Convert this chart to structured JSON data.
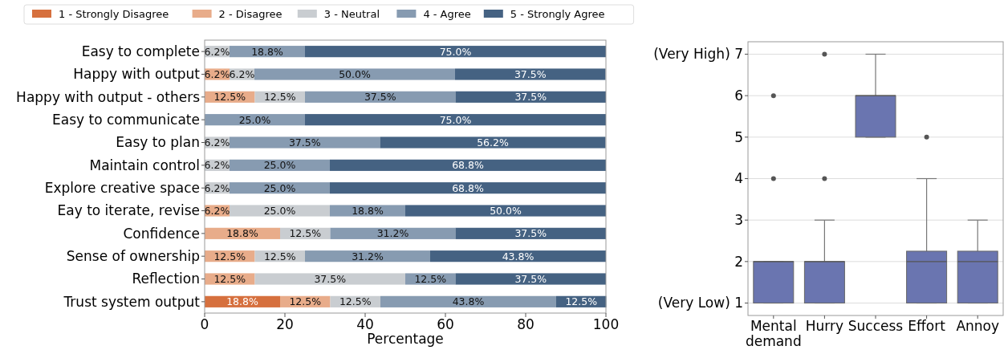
{
  "chart_data": [
    {
      "type": "bar",
      "orientation": "horizontal",
      "stacked": true,
      "xlabel": "Percentage",
      "xlim": [
        0,
        100
      ],
      "xticks": [
        0,
        20,
        40,
        60,
        80,
        100
      ],
      "grid": false,
      "legend": "top",
      "categories": [
        "Easy to complete",
        "Happy with output",
        "Happy with output - others",
        "Easy to communicate",
        "Easy to plan",
        "Maintain control",
        "Explore creative space",
        "Eay to iterate, revise",
        "Confidence",
        "Sense of ownership",
        "Reflection",
        "Trust system output"
      ],
      "series": [
        {
          "name": "1 - Strongly Disagree",
          "color": "#d6703e",
          "values": [
            0,
            0,
            0,
            0,
            0,
            0,
            0,
            0,
            0,
            0,
            0,
            18.8
          ],
          "value_labels": [
            null,
            null,
            null,
            null,
            null,
            null,
            null,
            null,
            null,
            null,
            null,
            "18.8%"
          ]
        },
        {
          "name": "2 - Disagree",
          "color": "#e8ac8a",
          "values": [
            0,
            6.2,
            12.5,
            0,
            0,
            0,
            0,
            6.2,
            18.8,
            12.5,
            12.5,
            12.5
          ],
          "value_labels": [
            null,
            "6.2%",
            "12.5%",
            null,
            null,
            null,
            null,
            "6.2%",
            "18.8%",
            "12.5%",
            "12.5%",
            "12.5%"
          ]
        },
        {
          "name": "3 - Neutral",
          "color": "#c9cdd1",
          "values": [
            6.2,
            6.2,
            12.5,
            0,
            6.2,
            6.2,
            6.2,
            25.0,
            12.5,
            12.5,
            37.5,
            12.5
          ],
          "value_labels": [
            "6.2%",
            "6.2%",
            "12.5%",
            null,
            "6.2%",
            "6.2%",
            "6.2%",
            "25.0%",
            "12.5%",
            "12.5%",
            "37.5%",
            "12.5%"
          ]
        },
        {
          "name": "4 - Agree",
          "color": "#879bb1",
          "values": [
            18.8,
            50.0,
            37.5,
            25.0,
            37.5,
            25.0,
            25.0,
            18.8,
            31.2,
            31.2,
            12.5,
            43.8
          ],
          "value_labels": [
            "18.8%",
            "50.0%",
            "37.5%",
            "25.0%",
            "37.5%",
            "25.0%",
            "25.0%",
            "18.8%",
            "31.2%",
            "31.2%",
            "12.5%",
            "43.8%"
          ]
        },
        {
          "name": "5 - Strongly Agree",
          "color": "#456282",
          "values": [
            75.0,
            37.5,
            37.5,
            75.0,
            56.2,
            68.8,
            68.8,
            50.0,
            37.5,
            43.8,
            37.5,
            12.5
          ],
          "value_labels": [
            "75.0%",
            "37.5%",
            "37.5%",
            "75.0%",
            "56.2%",
            "68.8%",
            "68.8%",
            "50.0%",
            "37.5%",
            "43.8%",
            "37.5%",
            "12.5%"
          ]
        }
      ]
    },
    {
      "type": "box",
      "categories": [
        "Mental\ndemand",
        "Hurry",
        "Success",
        "Effort",
        "Annoy"
      ],
      "ylim": [
        0.7,
        7.3
      ],
      "yticks": [
        {
          "value": 1,
          "label": "(Very Low) 1"
        },
        2,
        3,
        4,
        5,
        6,
        {
          "value": 7,
          "label": "(Very High) 7"
        }
      ],
      "grid": "y",
      "color": "#6a75b0",
      "boxes": [
        {
          "low": 1,
          "q1": 1,
          "median": 2,
          "q3": 2,
          "high": 2,
          "outliers": [
            4,
            6
          ]
        },
        {
          "low": 1,
          "q1": 1,
          "median": 2,
          "q3": 2,
          "high": 3,
          "outliers": [
            4,
            7
          ]
        },
        {
          "low": 5,
          "q1": 5,
          "median": 6,
          "q3": 6,
          "high": 7
        },
        {
          "low": 1,
          "q1": 1,
          "median": 2,
          "q3": 2.25,
          "high": 4,
          "outliers": [
            5
          ]
        },
        {
          "low": 1,
          "q1": 1,
          "median": 2,
          "q3": 2.25,
          "high": 3
        }
      ]
    }
  ]
}
